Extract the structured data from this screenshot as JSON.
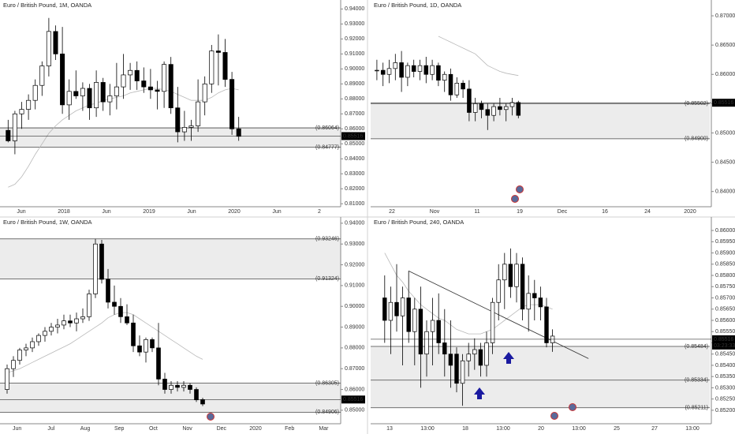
{
  "chart_data": [
    {
      "type": "candlestick",
      "title": "Euro / British Pound, 1M, OANDA",
      "xticks_text": [
        "Jun",
        "2018",
        "Jun",
        "2019",
        "Jun",
        "2020",
        "Jun",
        "2"
      ],
      "ylim": [
        0.808,
        0.946
      ],
      "yticks": [
        {
          "value": 0.81,
          "label": "0.81000"
        },
        {
          "value": 0.82,
          "label": "0.82000"
        },
        {
          "value": 0.83,
          "label": "0.83000"
        },
        {
          "value": 0.84,
          "label": "0.84000"
        },
        {
          "value": 0.85,
          "label": "0.85000"
        },
        {
          "value": 0.86,
          "label": "0.86000"
        },
        {
          "value": 0.87,
          "label": "0.87000"
        },
        {
          "value": 0.88,
          "label": "0.88000"
        },
        {
          "value": 0.89,
          "label": "0.89000"
        },
        {
          "value": 0.9,
          "label": "0.90000"
        },
        {
          "value": 0.91,
          "label": "0.91000"
        },
        {
          "value": 0.92,
          "label": "0.92000"
        },
        {
          "value": 0.93,
          "label": "0.93000"
        },
        {
          "value": 0.94,
          "label": "0.94000"
        }
      ],
      "levels": [
        {
          "value": 0.86064,
          "label": "(0.86064)"
        },
        {
          "value": 0.84777,
          "label": "(0.84777)"
        }
      ],
      "last_price": 0.85516,
      "open": [
        0.859,
        0.852,
        0.87,
        0.873,
        0.879,
        0.889,
        0.902,
        0.925,
        0.91,
        0.876,
        0.885,
        0.882,
        0.887,
        0.874,
        0.891,
        0.878,
        0.882,
        0.888,
        0.896,
        0.899,
        0.892,
        0.888,
        0.886,
        0.885,
        0.903,
        0.874,
        0.858,
        0.861,
        0.862,
        0.878,
        0.89,
        0.912,
        0.911,
        0.893,
        0.86
      ],
      "high": [
        0.866,
        0.872,
        0.878,
        0.883,
        0.893,
        0.905,
        0.934,
        0.929,
        0.928,
        0.893,
        0.899,
        0.891,
        0.89,
        0.899,
        0.894,
        0.89,
        0.904,
        0.91,
        0.904,
        0.905,
        0.901,
        0.9,
        0.892,
        0.905,
        0.908,
        0.888,
        0.872,
        0.866,
        0.893,
        0.895,
        0.916,
        0.923,
        0.92,
        0.898,
        0.868
      ],
      "low": [
        0.851,
        0.843,
        0.86,
        0.866,
        0.873,
        0.882,
        0.895,
        0.906,
        0.87,
        0.866,
        0.88,
        0.872,
        0.866,
        0.868,
        0.872,
        0.869,
        0.873,
        0.88,
        0.886,
        0.886,
        0.884,
        0.88,
        0.873,
        0.874,
        0.87,
        0.851,
        0.852,
        0.852,
        0.858,
        0.869,
        0.884,
        0.889,
        0.888,
        0.856,
        0.852
      ],
      "close": [
        0.852,
        0.87,
        0.873,
        0.879,
        0.889,
        0.902,
        0.925,
        0.91,
        0.876,
        0.885,
        0.882,
        0.887,
        0.874,
        0.891,
        0.878,
        0.882,
        0.888,
        0.896,
        0.899,
        0.892,
        0.888,
        0.886,
        0.885,
        0.903,
        0.874,
        0.858,
        0.861,
        0.862,
        0.878,
        0.89,
        0.912,
        0.911,
        0.893,
        0.86,
        0.855
      ],
      "ma": [
        0.821,
        0.823,
        0.828,
        0.835,
        0.843,
        0.85,
        0.857,
        0.862,
        0.866,
        0.869,
        0.872,
        0.874,
        0.876,
        0.877,
        0.879,
        0.88,
        0.881,
        0.882,
        0.884,
        0.885,
        0.886,
        0.887,
        0.887,
        0.886,
        0.885,
        0.883,
        0.881,
        0.879,
        0.879,
        0.879,
        0.881,
        0.884,
        0.886,
        0.887,
        0.886
      ]
    },
    {
      "type": "candlestick",
      "title": "Euro / British Pound, 1D, OANDA",
      "xticks_text": [
        "22",
        "Nov",
        "11",
        "19",
        "Dec",
        "16",
        "24",
        "2020"
      ],
      "ylim": [
        0.8374,
        0.8727
      ],
      "yticks": [
        {
          "value": 0.84,
          "label": "0.84000"
        },
        {
          "value": 0.845,
          "label": "0.84500"
        },
        {
          "value": 0.85,
          "label": "0.85000"
        },
        {
          "value": 0.855,
          "label": "0.85500"
        },
        {
          "value": 0.86,
          "label": "0.86000"
        },
        {
          "value": 0.865,
          "label": "0.86500"
        },
        {
          "value": 0.87,
          "label": "0.87000"
        }
      ],
      "levels": [
        {
          "value": 0.85502,
          "label": "(0.85502)"
        },
        {
          "value": 0.849,
          "label": "(0.84900)"
        }
      ],
      "last_price": 0.85516,
      "open": [
        0.8607,
        0.8607,
        0.86,
        0.861,
        0.862,
        0.8595,
        0.8615,
        0.8605,
        0.8615,
        0.86,
        0.8615,
        0.859,
        0.86,
        0.8565,
        0.8585,
        0.8575,
        0.8535,
        0.855,
        0.854,
        0.853,
        0.8545,
        0.854,
        0.8545,
        0.8552
      ],
      "high": [
        0.8625,
        0.862,
        0.8625,
        0.8635,
        0.864,
        0.862,
        0.8625,
        0.8625,
        0.863,
        0.8625,
        0.862,
        0.8605,
        0.861,
        0.8595,
        0.859,
        0.859,
        0.856,
        0.8555,
        0.855,
        0.855,
        0.856,
        0.855,
        0.856,
        0.8555
      ],
      "low": [
        0.859,
        0.858,
        0.8585,
        0.859,
        0.857,
        0.858,
        0.8595,
        0.859,
        0.8585,
        0.859,
        0.858,
        0.857,
        0.8555,
        0.856,
        0.856,
        0.852,
        0.852,
        0.8525,
        0.8505,
        0.852,
        0.853,
        0.852,
        0.853,
        0.8525
      ],
      "close": [
        0.8607,
        0.86,
        0.861,
        0.862,
        0.8595,
        0.8615,
        0.8605,
        0.8615,
        0.86,
        0.8615,
        0.859,
        0.86,
        0.8565,
        0.8585,
        0.8575,
        0.8535,
        0.855,
        0.854,
        0.853,
        0.8545,
        0.854,
        0.8545,
        0.8552,
        0.853
      ],
      "ma": [
        null,
        null,
        null,
        null,
        null,
        null,
        null,
        null,
        null,
        null,
        0.8665,
        0.866,
        0.8655,
        0.865,
        0.8645,
        0.864,
        0.8635,
        0.8625,
        0.8615,
        0.861,
        0.8605,
        0.8602,
        0.86,
        0.8598
      ]
    },
    {
      "type": "candlestick",
      "title": "Euro / British Pound, 1W, OANDA",
      "xticks_text": [
        "Jun",
        "Jul",
        "Aug",
        "Sep",
        "Oct",
        "Nov",
        "Dec",
        "2020",
        "Feb",
        "Mar"
      ],
      "ylim": [
        0.8435,
        0.943
      ],
      "yticks": [
        {
          "value": 0.85,
          "label": "0.85000"
        },
        {
          "value": 0.86,
          "label": "0.86000"
        },
        {
          "value": 0.87,
          "label": "0.87000"
        },
        {
          "value": 0.88,
          "label": "0.88000"
        },
        {
          "value": 0.89,
          "label": "0.89000"
        },
        {
          "value": 0.9,
          "label": "0.90000"
        },
        {
          "value": 0.91,
          "label": "0.91000"
        },
        {
          "value": 0.92,
          "label": "0.92000"
        },
        {
          "value": 0.93,
          "label": "0.93000"
        },
        {
          "value": 0.94,
          "label": "0.94000"
        }
      ],
      "levels": [
        {
          "value": 0.93246,
          "label": "(0.93246)"
        },
        {
          "value": 0.91324,
          "label": "(0.91324)"
        },
        {
          "value": 0.86305,
          "label": "(0.86305)"
        },
        {
          "value": 0.84906,
          "label": "(0.84906)"
        }
      ],
      "last_price": 0.85516,
      "open": [
        0.86,
        0.87,
        0.874,
        0.879,
        0.88,
        0.883,
        0.886,
        0.888,
        0.89,
        0.891,
        0.893,
        0.892,
        0.894,
        0.895,
        0.906,
        0.93,
        0.913,
        0.902,
        0.9,
        0.895,
        0.892,
        0.881,
        0.878,
        0.884,
        0.88,
        0.865,
        0.86,
        0.862,
        0.861,
        0.862,
        0.86,
        0.855
      ],
      "high": [
        0.872,
        0.876,
        0.88,
        0.882,
        0.885,
        0.887,
        0.89,
        0.892,
        0.894,
        0.896,
        0.896,
        0.897,
        0.899,
        0.908,
        0.9325,
        0.932,
        0.918,
        0.91,
        0.904,
        0.901,
        0.896,
        0.886,
        0.885,
        0.885,
        0.892,
        0.868,
        0.864,
        0.864,
        0.864,
        0.863,
        0.861,
        0.856
      ],
      "low": [
        0.858,
        0.866,
        0.872,
        0.876,
        0.878,
        0.881,
        0.883,
        0.886,
        0.887,
        0.889,
        0.89,
        0.888,
        0.892,
        0.893,
        0.904,
        0.911,
        0.899,
        0.896,
        0.892,
        0.891,
        0.878,
        0.876,
        0.873,
        0.878,
        0.862,
        0.858,
        0.858,
        0.859,
        0.859,
        0.858,
        0.854,
        0.852
      ],
      "close": [
        0.87,
        0.874,
        0.879,
        0.88,
        0.883,
        0.886,
        0.888,
        0.89,
        0.891,
        0.893,
        0.892,
        0.894,
        0.895,
        0.906,
        0.93,
        0.913,
        0.902,
        0.9,
        0.895,
        0.892,
        0.881,
        0.878,
        0.884,
        0.88,
        0.865,
        0.86,
        0.862,
        0.861,
        0.862,
        0.86,
        0.855,
        0.853
      ],
      "ma": [
        0.868,
        0.869,
        0.87,
        0.8715,
        0.873,
        0.8745,
        0.876,
        0.8775,
        0.879,
        0.8805,
        0.882,
        0.884,
        0.886,
        0.888,
        0.89,
        0.892,
        0.8945,
        0.896,
        0.897,
        0.897,
        0.896,
        0.894,
        0.892,
        0.89,
        0.888,
        0.886,
        0.884,
        0.882,
        0.88,
        0.878,
        0.876,
        0.8745
      ]
    },
    {
      "type": "candlestick",
      "title": "Euro / British Pound, 240, OANDA",
      "xticks_text": [
        "13",
        "13:00",
        "18",
        "13:00",
        "20",
        "13:00",
        "25",
        "27",
        "13:00"
      ],
      "ylim": [
        0.8514,
        0.8606
      ],
      "yticks": [
        {
          "value": 0.852,
          "label": "0.85200"
        },
        {
          "value": 0.8525,
          "label": "0.85250"
        },
        {
          "value": 0.853,
          "label": "0.85300"
        },
        {
          "value": 0.8535,
          "label": "0.85350"
        },
        {
          "value": 0.854,
          "label": "0.85400"
        },
        {
          "value": 0.8545,
          "label": "0.85450"
        },
        {
          "value": 0.855,
          "label": "0.85500"
        },
        {
          "value": 0.8555,
          "label": "0.85550"
        },
        {
          "value": 0.856,
          "label": "0.85600"
        },
        {
          "value": 0.8565,
          "label": "0.85650"
        },
        {
          "value": 0.857,
          "label": "0.85700"
        },
        {
          "value": 0.8575,
          "label": "0.85750"
        },
        {
          "value": 0.858,
          "label": "0.85800"
        },
        {
          "value": 0.8585,
          "label": "0.85850"
        },
        {
          "value": 0.859,
          "label": "0.85900"
        },
        {
          "value": 0.8595,
          "label": "0.85950"
        },
        {
          "value": 0.86,
          "label": "0.86000"
        }
      ],
      "levels": [
        {
          "value": 0.85484,
          "label": "(0.85484)"
        },
        {
          "value": 0.85334,
          "label": "(0.85334)"
        },
        {
          "value": 0.85211,
          "label": "(0.85211)"
        }
      ],
      "last_price": 0.85516,
      "countdown": "03:23:33",
      "trendline": [
        0.8582,
        0.8543
      ],
      "open": [
        0.857,
        0.856,
        0.8568,
        0.8562,
        0.857,
        0.8555,
        0.8565,
        0.8545,
        0.8555,
        0.856,
        0.855,
        0.8545,
        0.8545,
        0.8532,
        0.8542,
        0.8545,
        0.8547,
        0.854,
        0.855,
        0.8568,
        0.8578,
        0.8585,
        0.8575,
        0.8585,
        0.8565,
        0.8572,
        0.857,
        0.8566,
        0.855
      ],
      "high": [
        0.858,
        0.8575,
        0.8585,
        0.8575,
        0.8582,
        0.857,
        0.8575,
        0.856,
        0.857,
        0.8572,
        0.8565,
        0.856,
        0.8548,
        0.8545,
        0.855,
        0.8552,
        0.855,
        0.8555,
        0.857,
        0.8585,
        0.859,
        0.8592,
        0.859,
        0.8588,
        0.858,
        0.8578,
        0.8575,
        0.857,
        0.8556
      ],
      "low": [
        0.855,
        0.8545,
        0.8555,
        0.854,
        0.855,
        0.854,
        0.853,
        0.8535,
        0.854,
        0.8545,
        0.8535,
        0.853,
        0.8528,
        0.8522,
        0.8535,
        0.8538,
        0.8535,
        0.8535,
        0.8545,
        0.856,
        0.8565,
        0.857,
        0.8568,
        0.856,
        0.8555,
        0.856,
        0.856,
        0.8548,
        0.8546
      ],
      "close": [
        0.856,
        0.8568,
        0.8562,
        0.857,
        0.8555,
        0.8565,
        0.8545,
        0.8555,
        0.856,
        0.855,
        0.8545,
        0.854,
        0.8532,
        0.8542,
        0.8545,
        0.8547,
        0.854,
        0.855,
        0.8568,
        0.8578,
        0.8585,
        0.8575,
        0.8585,
        0.8565,
        0.8572,
        0.857,
        0.8566,
        0.855,
        0.8553
      ],
      "ma": [
        0.859,
        0.8585,
        0.858,
        0.8577,
        0.8573,
        0.857,
        0.8567,
        0.8565,
        0.8563,
        0.8561,
        0.856,
        0.8558,
        0.8556,
        0.8555,
        0.8554,
        0.8554,
        0.8554,
        0.8555,
        0.8556,
        0.8558,
        0.856,
        0.8562,
        0.8564,
        0.8566,
        0.8567,
        0.8567,
        0.8567,
        0.8566,
        0.8565
      ]
    }
  ]
}
